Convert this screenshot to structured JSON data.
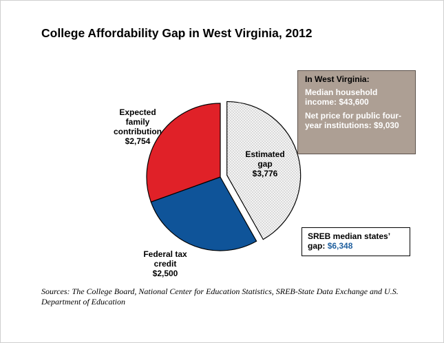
{
  "chart_data": {
    "type": "pie",
    "title": "College Affordability Gap in West Virginia, 2012",
    "slices": [
      {
        "label": "Estimated gap",
        "value": 3776,
        "color": "#f2f2f2",
        "pattern": "dotted",
        "exploded": true
      },
      {
        "label": "Federal tax credit",
        "value": 2500,
        "color": "#0f5499"
      },
      {
        "label": "Expected family contribution",
        "value": 2754,
        "color": "#e02128"
      }
    ],
    "labels": {
      "gap": [
        "Estimated",
        "gap",
        "$3,776"
      ],
      "federal": [
        "Federal tax",
        "credit",
        "$2,500"
      ],
      "efc": [
        "Expected",
        "family",
        "contribution",
        "$2,754"
      ]
    }
  },
  "info_box": {
    "heading": "In West Virginia:",
    "facts": [
      "Median household income: $43,600",
      "Net price for public four-year institutions: $9,030"
    ]
  },
  "sreb_box": {
    "label": "SREB median states’ gap:",
    "value": "$6,348"
  },
  "sources": "Sources: The College Board, National Center for Education Statistics, SREB-State Data Exchange and U.S. Department of Education"
}
